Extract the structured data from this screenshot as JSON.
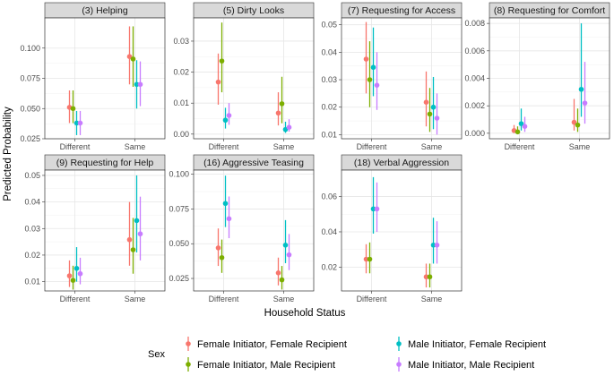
{
  "chart_data": {
    "type": "scatter",
    "xlabel": "Household Status",
    "ylabel": "Predicted Probability",
    "categories": [
      "Different",
      "Same"
    ],
    "legend": {
      "title": "Sex",
      "position": "bottom",
      "entries": [
        {
          "name": "Female Initiator, Female Recipient",
          "color": "#F8766D"
        },
        {
          "name": "Female Initiator, Male Recipient",
          "color": "#7CAE00"
        },
        {
          "name": "Male Initiator, Female Recipient",
          "color": "#00BFC4"
        },
        {
          "name": "Male Initiator, Male Recipient",
          "color": "#C77CFF"
        }
      ]
    },
    "grid": true,
    "panels": [
      {
        "title": "(3) Helping",
        "ylim": [
          0.025,
          0.125
        ],
        "yticks": [
          0.025,
          0.05,
          0.075,
          0.1
        ],
        "yticklabels": [
          "0.025",
          "0.050",
          "0.075",
          "0.100"
        ],
        "series": [
          {
            "values": [
              0.051,
              0.093
            ],
            "lower": [
              0.038,
              0.07
            ],
            "upper": [
              0.065,
              0.118
            ]
          },
          {
            "values": [
              0.05,
              0.091
            ],
            "lower": [
              0.038,
              0.068
            ],
            "upper": [
              0.065,
              0.118
            ]
          },
          {
            "values": [
              0.038,
              0.07
            ],
            "lower": [
              0.028,
              0.05
            ],
            "upper": [
              0.048,
              0.09
            ]
          },
          {
            "values": [
              0.038,
              0.07
            ],
            "lower": [
              0.028,
              0.052
            ],
            "upper": [
              0.048,
              0.089
            ]
          }
        ]
      },
      {
        "title": "(5) Dirty Looks",
        "ylim": [
          -0.0015,
          0.0375
        ],
        "yticks": [
          0.0,
          0.01,
          0.02,
          0.03
        ],
        "yticklabels": [
          "0.00",
          "0.01",
          "0.02",
          "0.03"
        ],
        "series": [
          {
            "values": [
              0.0168,
              0.0068
            ],
            "lower": [
              0.0095,
              0.0028
            ],
            "upper": [
              0.026,
              0.0135
            ]
          },
          {
            "values": [
              0.0236,
              0.0098
            ],
            "lower": [
              0.0135,
              0.0035
            ],
            "upper": [
              0.036,
              0.0185
            ]
          },
          {
            "values": [
              0.0045,
              0.0015
            ],
            "lower": [
              0.0018,
              0.0004
            ],
            "upper": [
              0.0085,
              0.004
            ]
          },
          {
            "values": [
              0.006,
              0.0022
            ],
            "lower": [
              0.003,
              0.0008
            ],
            "upper": [
              0.01,
              0.0048
            ]
          }
        ]
      },
      {
        "title": "(7) Requesting for Access",
        "ylim": [
          0.0085,
          0.0525
        ],
        "yticks": [
          0.01,
          0.02,
          0.03,
          0.04,
          0.05
        ],
        "yticklabels": [
          "0.01",
          "0.02",
          "0.03",
          "0.04",
          "0.05"
        ],
        "series": [
          {
            "values": [
              0.0375,
              0.0218
            ],
            "lower": [
              0.025,
              0.013
            ],
            "upper": [
              0.051,
              0.033
            ]
          },
          {
            "values": [
              0.03,
              0.0175
            ],
            "lower": [
              0.02,
              0.011
            ],
            "upper": [
              0.044,
              0.027
            ]
          },
          {
            "values": [
              0.0345,
              0.02
            ],
            "lower": [
              0.024,
              0.012
            ],
            "upper": [
              0.049,
              0.031
            ]
          },
          {
            "values": [
              0.028,
              0.016
            ],
            "lower": [
              0.019,
              0.01
            ],
            "upper": [
              0.04,
              0.025
            ]
          }
        ]
      },
      {
        "title": "(8) Requesting for Comfort",
        "ylim": [
          -0.0004,
          0.0084
        ],
        "yticks": [
          0.0,
          0.002,
          0.004,
          0.006,
          0.008
        ],
        "yticklabels": [
          "0.000",
          "0.002",
          "0.004",
          "0.006",
          "0.008"
        ],
        "series": [
          {
            "values": [
              0.0002,
              0.0008
            ],
            "lower": [
              2e-05,
              0.0002
            ],
            "upper": [
              0.0006,
              0.0025
            ]
          },
          {
            "values": [
              0.0001,
              0.0006
            ],
            "lower": [
              2e-05,
              0.0001
            ],
            "upper": [
              0.0005,
              0.0018
            ]
          },
          {
            "values": [
              0.0007,
              0.0032
            ],
            "lower": [
              0.0002,
              0.0012
            ],
            "upper": [
              0.0018,
              0.008
            ]
          },
          {
            "values": [
              0.0005,
              0.0022
            ],
            "lower": [
              0.0001,
              0.0007
            ],
            "upper": [
              0.0012,
              0.0052
            ]
          }
        ]
      },
      {
        "title": "(9) Requesting for Help",
        "ylim": [
          0.0065,
          0.052
        ],
        "yticks": [
          0.01,
          0.02,
          0.03,
          0.04,
          0.05
        ],
        "yticklabels": [
          "0.01",
          "0.02",
          "0.03",
          "0.04",
          "0.05"
        ],
        "series": [
          {
            "values": [
              0.0122,
              0.0258
            ],
            "lower": [
              0.008,
              0.016
            ],
            "upper": [
              0.018,
              0.04
            ]
          },
          {
            "values": [
              0.0105,
              0.022
            ],
            "lower": [
              0.007,
              0.013
            ],
            "upper": [
              0.016,
              0.034
            ]
          },
          {
            "values": [
              0.015,
              0.033
            ],
            "lower": [
              0.01,
              0.021
            ],
            "upper": [
              0.023,
              0.05
            ]
          },
          {
            "values": [
              0.013,
              0.028
            ],
            "lower": [
              0.009,
              0.018
            ],
            "upper": [
              0.019,
              0.042
            ]
          }
        ]
      },
      {
        "title": "(16) Aggressive Teasing",
        "ylim": [
          0.016,
          0.103
        ],
        "yticks": [
          0.025,
          0.05,
          0.075,
          0.1
        ],
        "yticklabels": [
          "0.025",
          "0.050",
          "0.075",
          "0.100"
        ],
        "series": [
          {
            "values": [
              0.047,
              0.029
            ],
            "lower": [
              0.034,
              0.02
            ],
            "upper": [
              0.061,
              0.04
            ]
          },
          {
            "values": [
              0.04,
              0.024
            ],
            "lower": [
              0.029,
              0.017
            ],
            "upper": [
              0.053,
              0.034
            ]
          },
          {
            "values": [
              0.079,
              0.049
            ],
            "lower": [
              0.062,
              0.036
            ],
            "upper": [
              0.099,
              0.067
            ]
          },
          {
            "values": [
              0.068,
              0.042
            ],
            "lower": [
              0.054,
              0.031
            ],
            "upper": [
              0.084,
              0.057
            ]
          }
        ]
      },
      {
        "title": "(18) Verbal Aggression",
        "ylim": [
          0.0065,
          0.075
        ],
        "yticks": [
          0.02,
          0.04,
          0.06
        ],
        "yticklabels": [
          "0.02",
          "0.04",
          "0.06"
        ],
        "series": [
          {
            "values": [
              0.0245,
              0.0145
            ],
            "lower": [
              0.0165,
              0.0085
            ],
            "upper": [
              0.033,
              0.022
            ]
          },
          {
            "values": [
              0.0245,
              0.0145
            ],
            "lower": [
              0.0165,
              0.0085
            ],
            "upper": [
              0.034,
              0.022
            ]
          },
          {
            "values": [
              0.053,
              0.0325
            ],
            "lower": [
              0.039,
              0.022
            ],
            "upper": [
              0.071,
              0.048
            ]
          },
          {
            "values": [
              0.053,
              0.0325
            ],
            "lower": [
              0.04,
              0.022
            ],
            "upper": [
              0.068,
              0.046
            ]
          }
        ]
      }
    ]
  }
}
